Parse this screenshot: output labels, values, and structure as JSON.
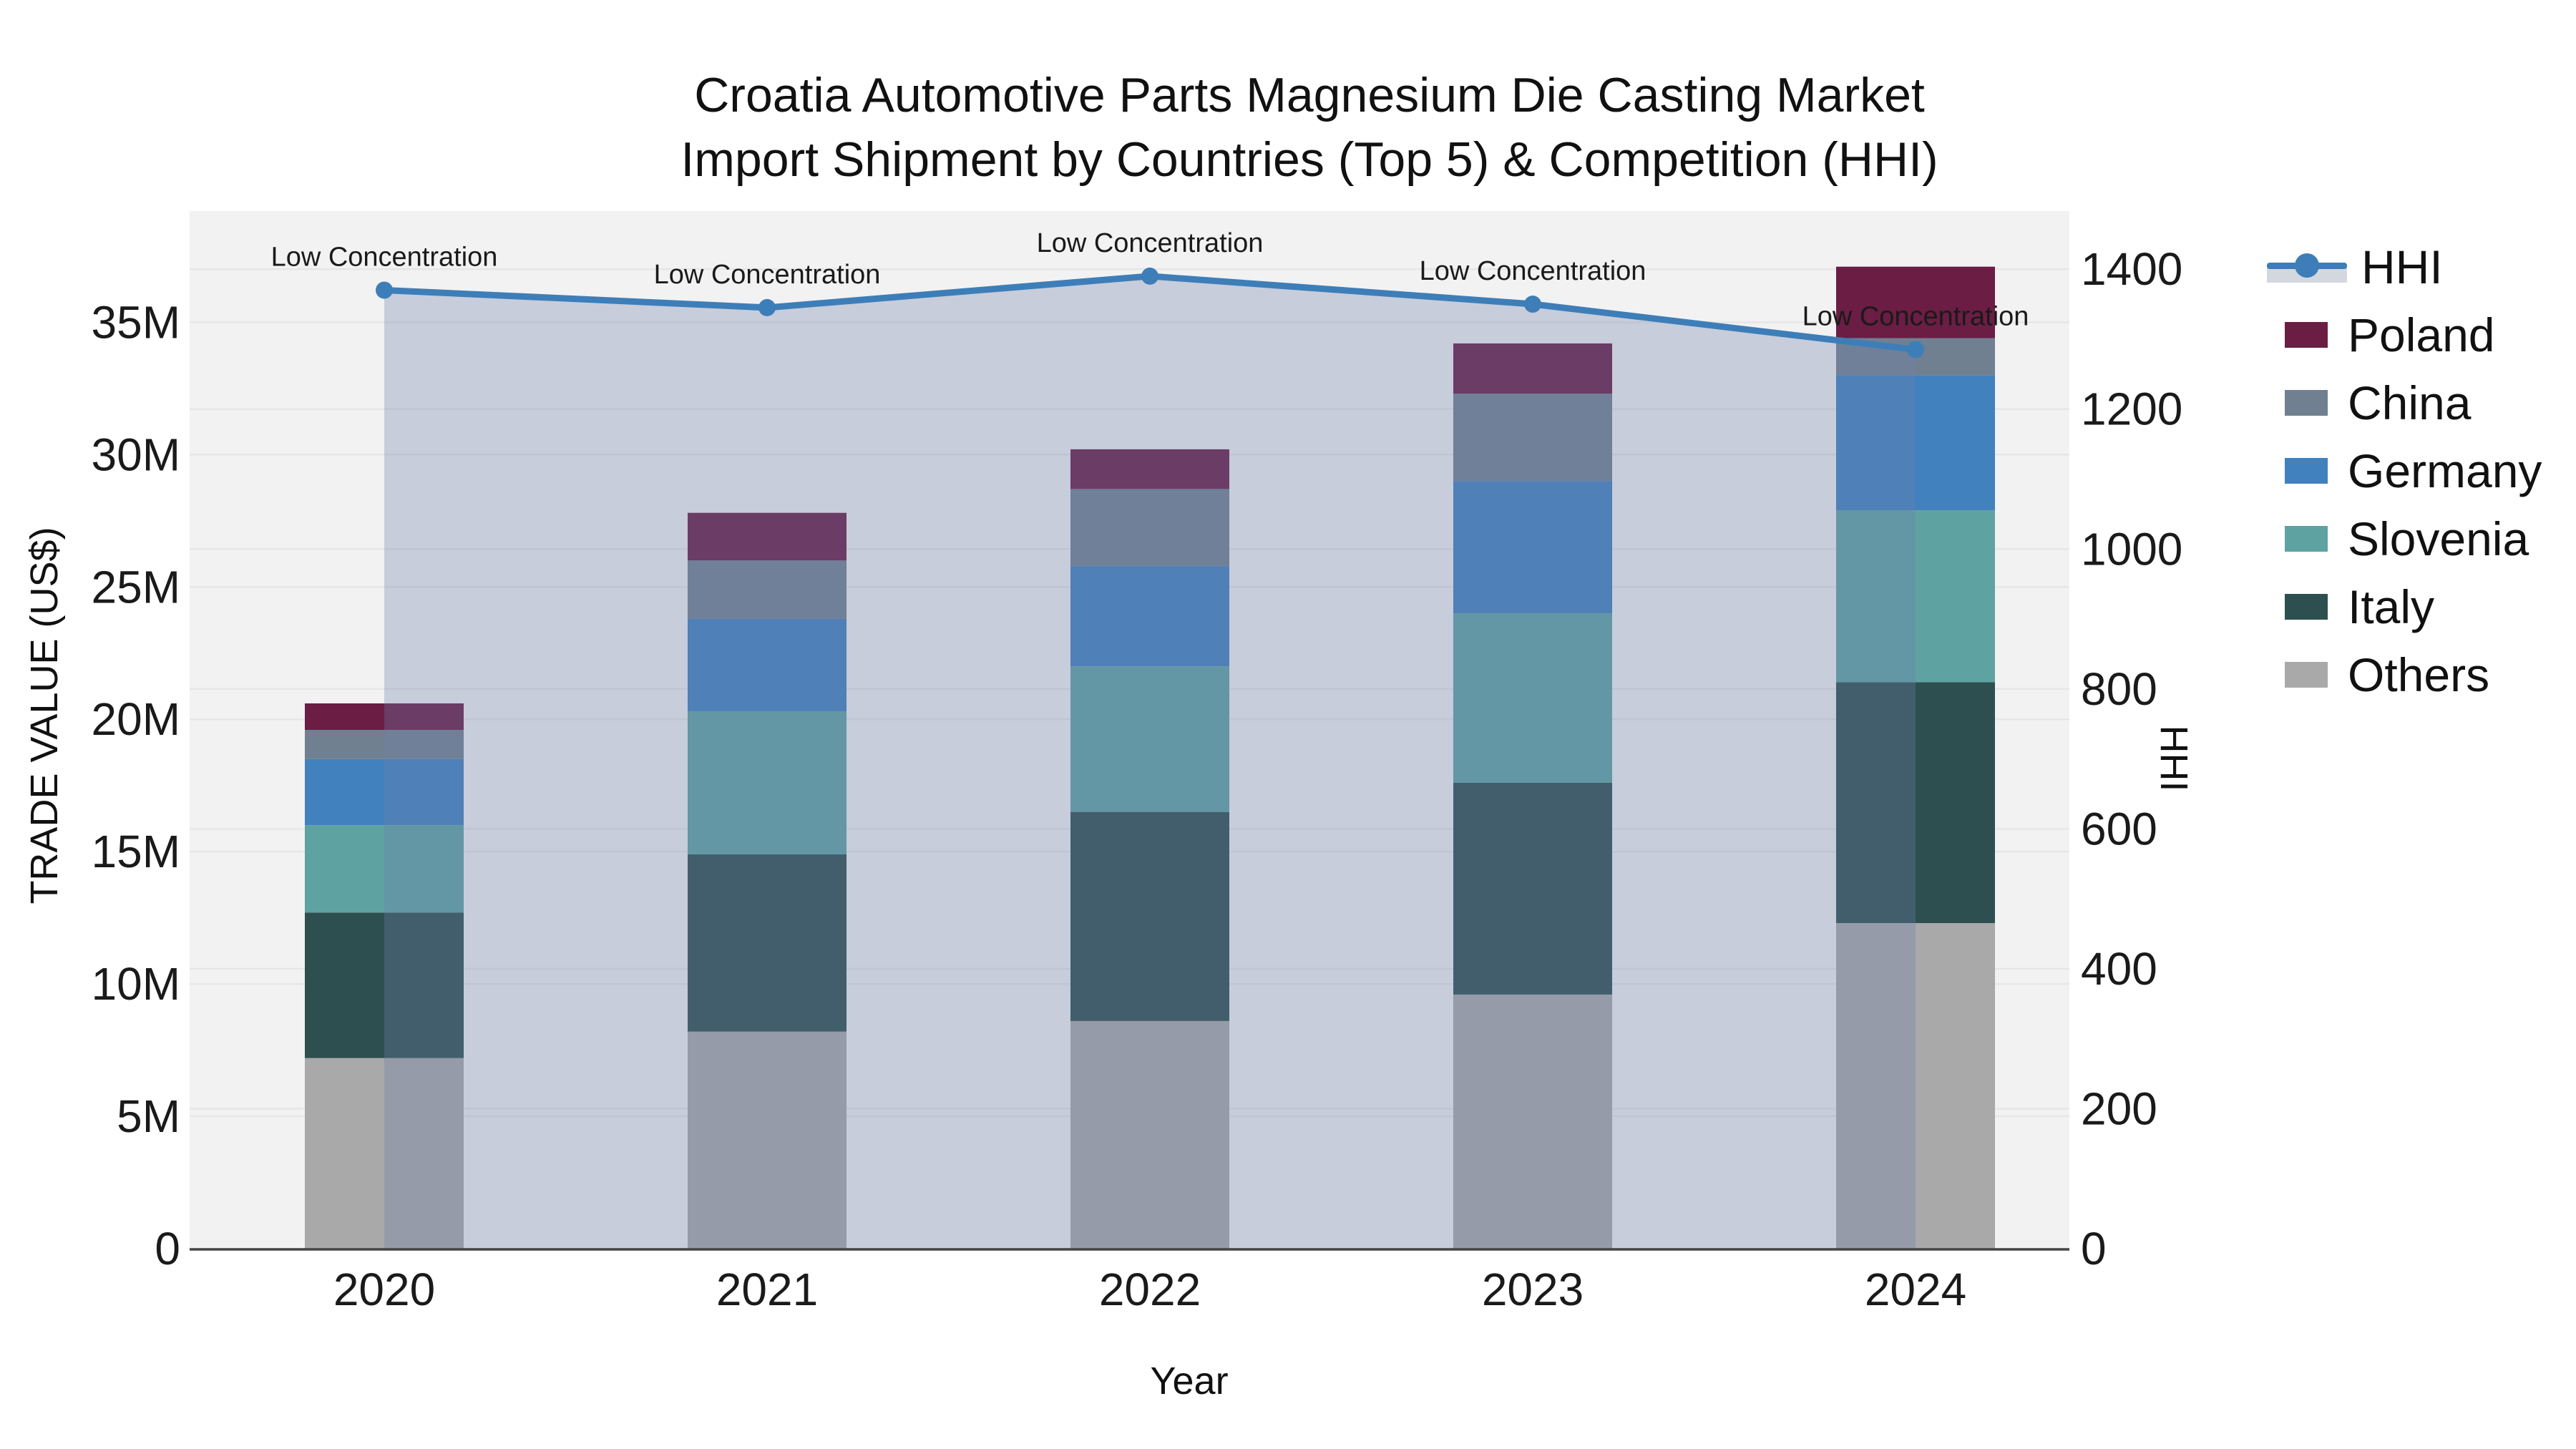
{
  "title": {
    "line1": "Croatia Automotive Parts Magnesium Die Casting Market",
    "line2": "Import Shipment by Countries (Top 5) & Competition (HHI)"
  },
  "axes": {
    "y1": {
      "title": "TRADE VALUE (US$)",
      "ticks": [
        "0",
        "5M",
        "10M",
        "15M",
        "20M",
        "25M",
        "30M",
        "35M"
      ]
    },
    "y2": {
      "title": "HHI",
      "ticks": [
        "0",
        "200",
        "400",
        "600",
        "800",
        "1000",
        "1200",
        "1400"
      ]
    },
    "x": {
      "title": "Year",
      "ticks": [
        "2020",
        "2021",
        "2022",
        "2023",
        "2024"
      ]
    }
  },
  "legend": {
    "items": [
      {
        "label": "HHI",
        "kind": "line",
        "color": "#3E7EB8"
      },
      {
        "label": "Poland",
        "kind": "box",
        "color": "#6B1D44"
      },
      {
        "label": "China",
        "kind": "box",
        "color": "#708090"
      },
      {
        "label": "Germany",
        "kind": "box",
        "color": "#4181BD"
      },
      {
        "label": "Slovenia",
        "kind": "box",
        "color": "#5FA2A2"
      },
      {
        "label": "Italy",
        "kind": "box",
        "color": "#2E4F4F"
      },
      {
        "label": "Others",
        "kind": "box",
        "color": "#A9A9A9"
      }
    ]
  },
  "chart_data": {
    "type": "bar",
    "subtype": "stacked_bars_with_secondary_axis_line",
    "title": "Croatia Automotive Parts Magnesium Die Casting Market Import Shipment by Countries (Top 5) & Competition (HHI)",
    "xlabel": "Year",
    "ylabel": "TRADE VALUE (US$)",
    "y2label": "HHI",
    "categories": [
      "2020",
      "2021",
      "2022",
      "2023",
      "2024"
    ],
    "unit": "million US$",
    "series": [
      {
        "name": "Others",
        "color": "#A9A9A9",
        "values": [
          7.2,
          8.2,
          8.6,
          9.6,
          12.3
        ]
      },
      {
        "name": "Italy",
        "color": "#2E4F4F",
        "values": [
          5.5,
          6.7,
          7.9,
          8.0,
          9.1
        ]
      },
      {
        "name": "Slovenia",
        "color": "#5FA2A2",
        "values": [
          3.3,
          5.4,
          5.5,
          6.4,
          6.5
        ]
      },
      {
        "name": "Germany",
        "color": "#4181BD",
        "values": [
          2.5,
          3.5,
          3.8,
          5.0,
          5.1
        ]
      },
      {
        "name": "China",
        "color": "#708090",
        "values": [
          1.1,
          2.2,
          2.9,
          3.3,
          1.4
        ]
      },
      {
        "name": "Poland",
        "color": "#6B1D44",
        "values": [
          1.0,
          1.8,
          1.5,
          1.9,
          2.7
        ]
      }
    ],
    "stack_totals": [
      20.6,
      27.8,
      30.2,
      34.2,
      37.1
    ],
    "line": {
      "name": "HHI",
      "axis": "y2",
      "color": "#3E7EB8",
      "area_fill": "rgba(110,126,170,0.32)",
      "values": [
        1370,
        1345,
        1390,
        1350,
        1285
      ]
    },
    "annotations": [
      {
        "text": "Low Concentration",
        "category": "2020"
      },
      {
        "text": "Low Concentration",
        "category": "2021"
      },
      {
        "text": "Low Concentration",
        "category": "2022"
      },
      {
        "text": "Low Concentration",
        "category": "2023"
      },
      {
        "text": "Low Concentration",
        "category": "2024"
      }
    ],
    "ylim": [
      0,
      39.2
    ],
    "y2lim": [
      0,
      1483
    ],
    "grid": true,
    "plot_bg": "#F2F2F2",
    "grid_color": "#E6E6E6",
    "axis_line_color": "#444444",
    "legend_position": "right"
  }
}
